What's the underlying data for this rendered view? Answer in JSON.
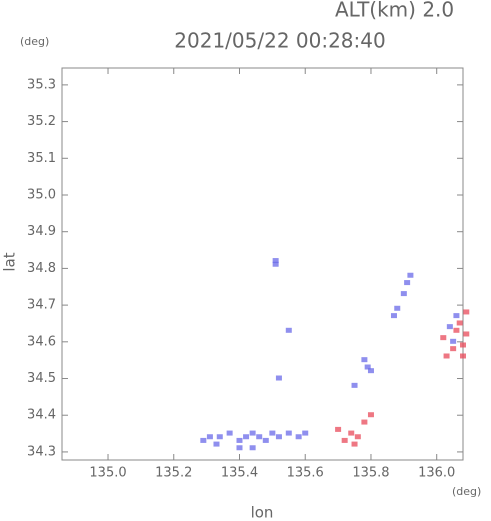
{
  "chart_data": {
    "type": "scatter",
    "title": "2021/05/22 00:28:40",
    "subtitle": "ALT(km) 2.0",
    "y_unit": "(deg)",
    "x_unit": "(deg)",
    "x_label": "lon",
    "y_label": "lat",
    "xlim": [
      134.86,
      136.08
    ],
    "ylim": [
      34.278,
      35.346
    ],
    "xticks": [
      {
        "value": 135,
        "label": "135.0"
      },
      135.2,
      135.4,
      135.6,
      135.8,
      {
        "value": 136,
        "label": "136.0"
      }
    ],
    "yticks": [
      34.3,
      34.4,
      34.5,
      34.6,
      34.7,
      34.8,
      34.9,
      {
        "value": 35,
        "label": "35.0"
      },
      35.1,
      35.2,
      35.3
    ],
    "series": [
      {
        "color": "#6a6ae8",
        "x": [
          135.51,
          135.51,
          135.55,
          135.52,
          135.92,
          135.91,
          135.9,
          135.88,
          135.87,
          135.78,
          135.79,
          135.8,
          135.75,
          135.29,
          135.31,
          135.34,
          135.37,
          135.4,
          135.42,
          135.44,
          135.46,
          135.48,
          135.5,
          135.52,
          135.55,
          135.58,
          135.6,
          135.4,
          135.44,
          135.33,
          136.06,
          136.04,
          136.05
        ],
        "values": [
          34.82,
          34.81,
          34.63,
          34.5,
          34.78,
          34.76,
          34.73,
          34.69,
          34.67,
          34.55,
          34.53,
          34.52,
          34.48,
          34.33,
          34.34,
          34.34,
          34.35,
          34.33,
          34.34,
          34.35,
          34.34,
          34.33,
          34.35,
          34.34,
          34.35,
          34.34,
          34.35,
          34.31,
          34.31,
          34.32,
          34.67,
          34.64,
          34.6
        ]
      },
      {
        "color": "#e84a5a",
        "x": [
          135.72,
          135.74,
          135.76,
          135.7,
          135.78,
          135.8,
          136.05,
          136.08,
          136.03,
          136.09,
          136.07,
          136.09,
          136.02,
          136.06,
          136.08,
          135.75
        ],
        "values": [
          34.33,
          34.35,
          34.34,
          34.36,
          34.38,
          34.4,
          34.58,
          34.59,
          34.56,
          34.62,
          34.65,
          34.68,
          34.61,
          34.63,
          34.56,
          34.32
        ]
      }
    ]
  }
}
